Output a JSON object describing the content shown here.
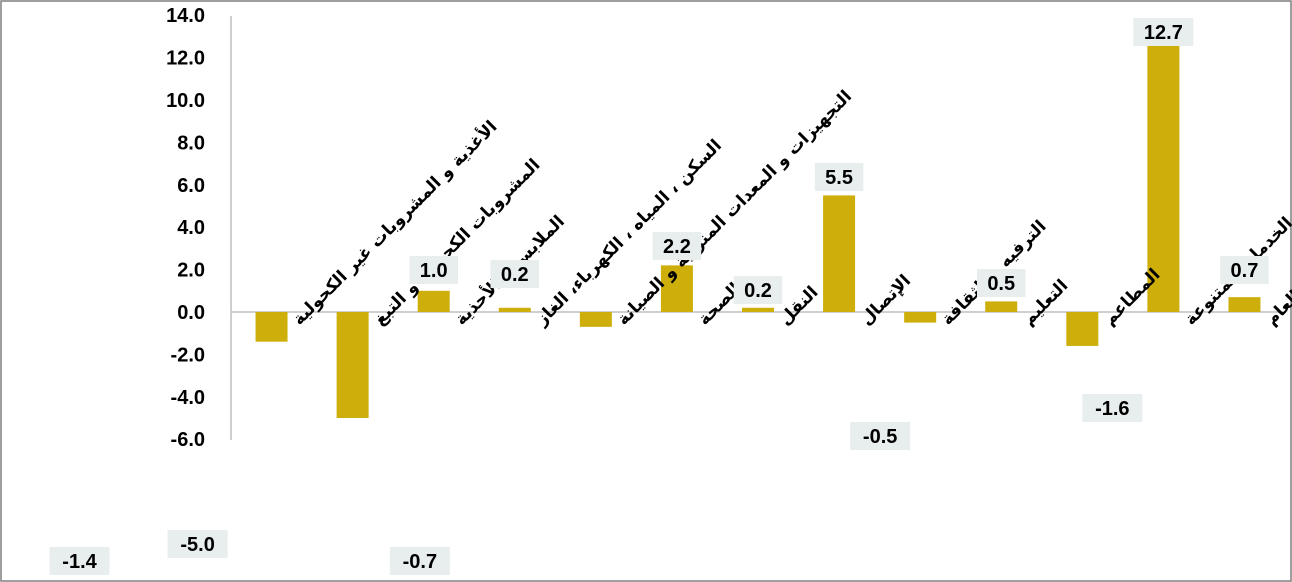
{
  "colors": {
    "bar": "#CDAE0A",
    "label_bg": "#E8EEEE",
    "axis": "#BFBFBF",
    "border": "#7F7F7F"
  },
  "chart_data": {
    "type": "bar",
    "categories": [
      "الأغذية و المشروبات غير الكحولية",
      "المشروبات الكحولية و التبغ",
      "الملابس و الأحذية",
      "السكن ، المياه ، الكهرباء، الغاز",
      "التجهيزات و المعدات المنزلية و الصيانة",
      "الصحة",
      "النقل",
      "الإتصال",
      "الترفيه و الثقافة",
      "التعليم",
      "المطاعم",
      "السلع و الخدمات المتنوعة",
      "الرقم القياسي العام"
    ],
    "values": [
      -1.4,
      -5.0,
      1.0,
      0.2,
      -0.7,
      2.2,
      0.2,
      5.5,
      -0.5,
      0.5,
      -1.6,
      12.7,
      0.7
    ],
    "data_labels": [
      "-1.4",
      "-5.0",
      "1.0",
      "0.2",
      "-0.7",
      "2.2",
      "0.2",
      "5.5",
      "-0.5",
      "0.5",
      "-1.6",
      "12.7",
      "0.7"
    ],
    "y_ticks": [
      "14.0",
      "12.0",
      "10.0",
      "8.0",
      "6.0",
      "4.0",
      "2.0",
      "0.0",
      "-2.0",
      "-4.0",
      "-6.0"
    ],
    "ylim": [
      -6,
      14
    ],
    "grid": false,
    "legend": "none"
  }
}
